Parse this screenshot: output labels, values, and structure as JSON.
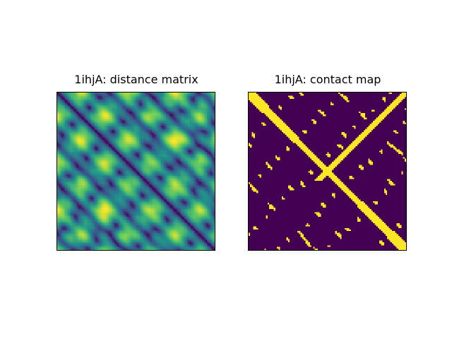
{
  "chart_data": [
    {
      "type": "heatmap",
      "title": "1ihjA: distance matrix",
      "colormap": "viridis",
      "matrix_size": 100,
      "axes_visible": false,
      "colorbar": false
    },
    {
      "type": "heatmap",
      "title": "1ihjA: contact map",
      "colormap": "viridis",
      "binary": true,
      "matrix_size": 100,
      "axes_visible": false,
      "colorbar": false
    }
  ],
  "colors": {
    "low": "#440154",
    "mid": "#21918c",
    "high": "#fde725"
  }
}
